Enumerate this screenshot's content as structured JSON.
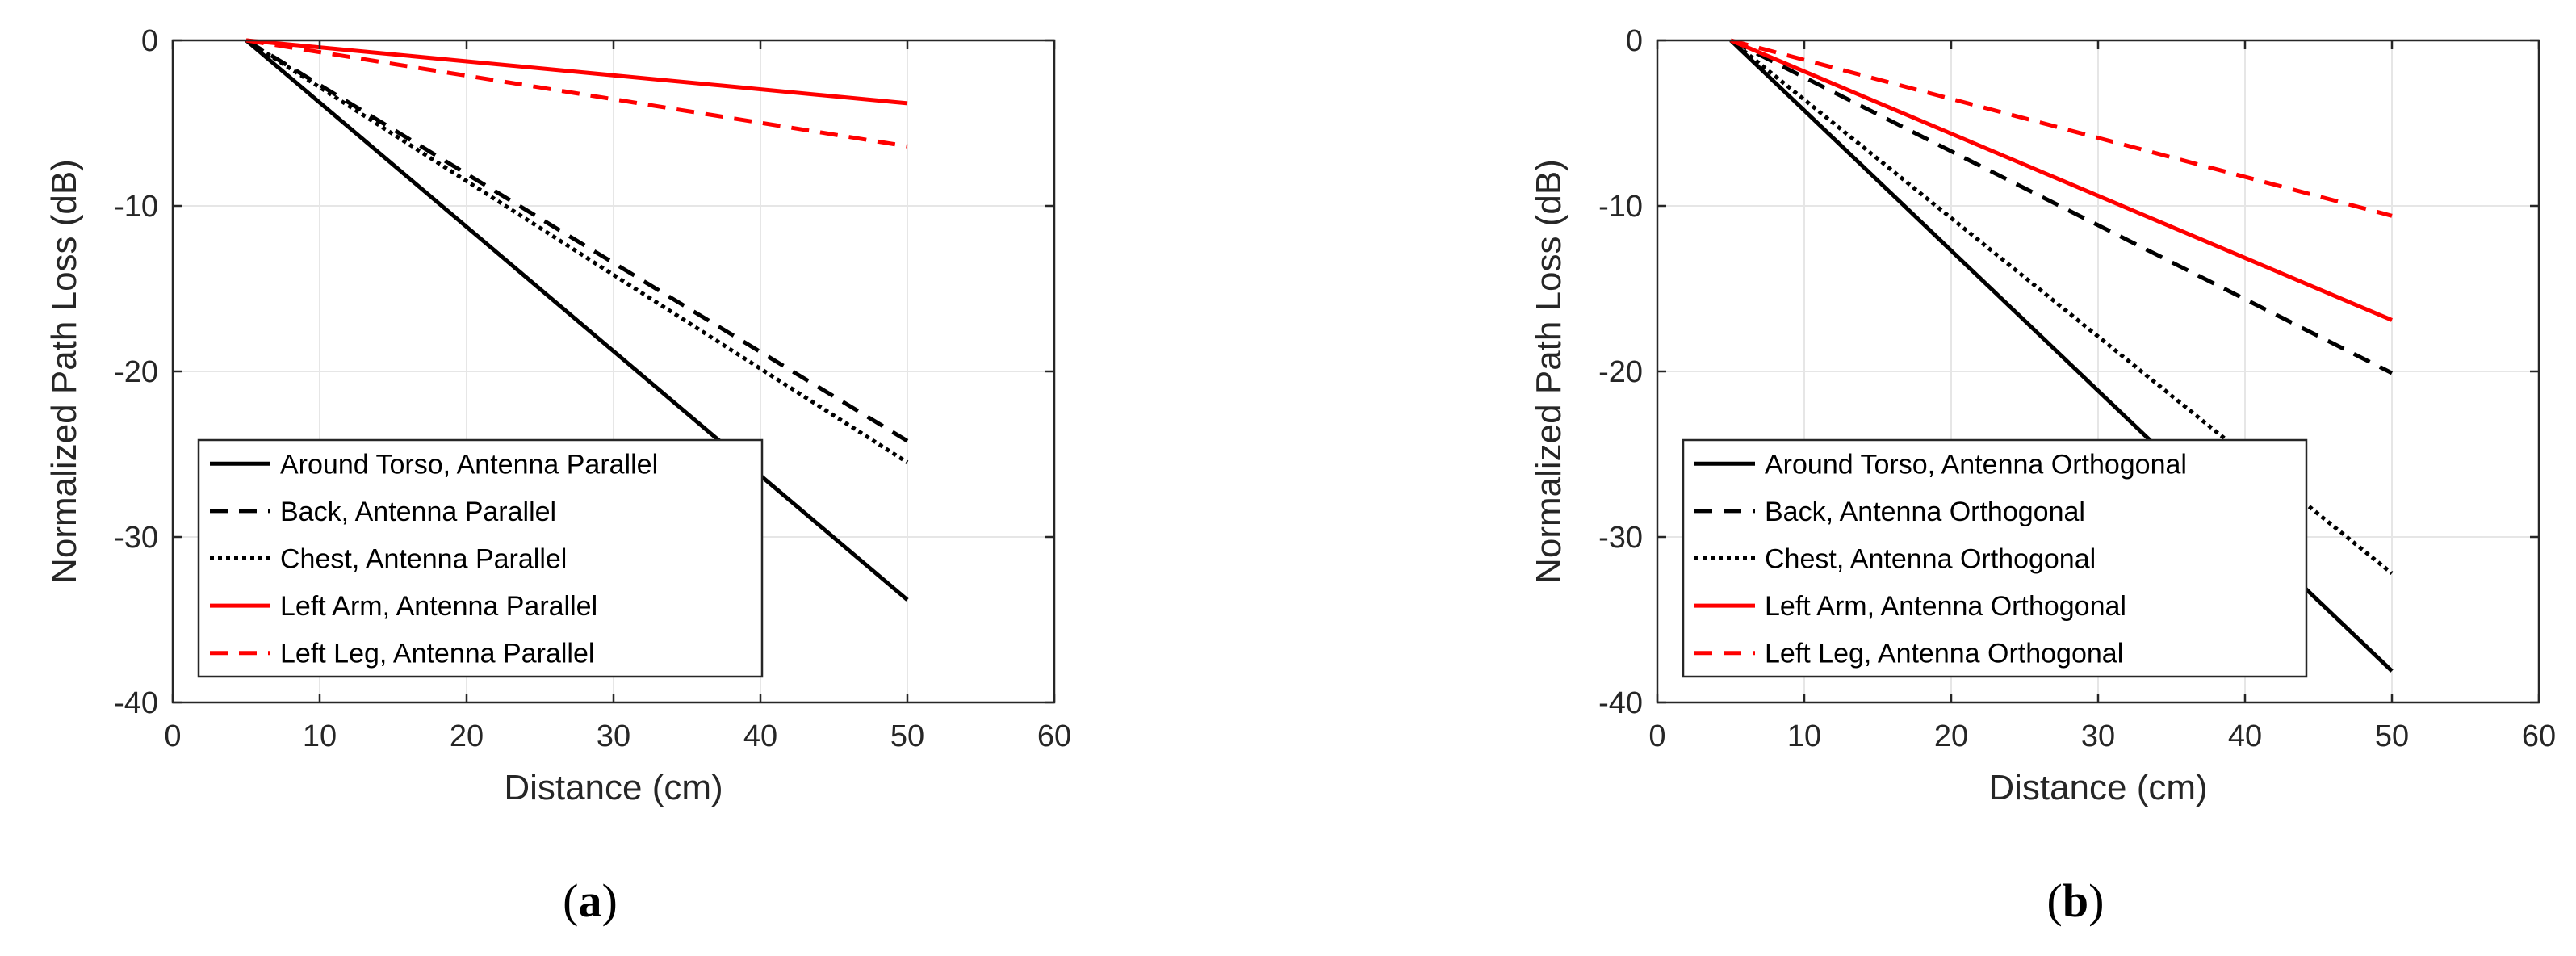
{
  "chart_data": [
    {
      "type": "line",
      "panel_label": "a",
      "xlabel": "Distance (cm)",
      "ylabel": "Normalized Path Loss (dB)",
      "xlim": [
        0,
        60
      ],
      "ylim": [
        -40,
        0
      ],
      "xticks": [
        0,
        10,
        20,
        30,
        40,
        50,
        60
      ],
      "yticks": [
        0,
        -10,
        -20,
        -30,
        -40
      ],
      "grid": true,
      "legend_position": "bottom-left",
      "series": [
        {
          "name": "Around Torso, Antenna Parallel",
          "color": "#000000",
          "style": "solid",
          "x": [
            5,
            50
          ],
          "y": [
            0,
            -33.8
          ]
        },
        {
          "name": "Back, Antenna Parallel",
          "color": "#000000",
          "style": "dashed",
          "x": [
            5,
            50
          ],
          "y": [
            0,
            -24.2
          ]
        },
        {
          "name": "Chest, Antenna Parallel",
          "color": "#000000",
          "style": "dotted",
          "x": [
            5,
            50
          ],
          "y": [
            0,
            -25.5
          ]
        },
        {
          "name": "Left Arm, Antenna Parallel",
          "color": "#ff0000",
          "style": "solid",
          "x": [
            5,
            50
          ],
          "y": [
            0,
            -3.8
          ]
        },
        {
          "name": "Left Leg, Antenna Parallel",
          "color": "#ff0000",
          "style": "dashed",
          "x": [
            5,
            50
          ],
          "y": [
            0,
            -6.4
          ]
        }
      ]
    },
    {
      "type": "line",
      "panel_label": "b",
      "xlabel": "Distance (cm)",
      "ylabel": "Normalized Path Loss (dB)",
      "xlim": [
        0,
        60
      ],
      "ylim": [
        -40,
        0
      ],
      "xticks": [
        0,
        10,
        20,
        30,
        40,
        50,
        60
      ],
      "yticks": [
        0,
        -10,
        -20,
        -30,
        -40
      ],
      "grid": true,
      "legend_position": "bottom-left",
      "series": [
        {
          "name": "Around Torso, Antenna Orthogonal",
          "color": "#000000",
          "style": "solid",
          "x": [
            5,
            50
          ],
          "y": [
            0,
            -38.1
          ]
        },
        {
          "name": "Back, Antenna Orthogonal",
          "color": "#000000",
          "style": "dashed",
          "x": [
            5,
            50
          ],
          "y": [
            0,
            -20.1
          ]
        },
        {
          "name": "Chest, Antenna Orthogonal",
          "color": "#000000",
          "style": "dotted",
          "x": [
            5,
            50
          ],
          "y": [
            0,
            -32.2
          ]
        },
        {
          "name": "Left Arm, Antenna Orthogonal",
          "color": "#ff0000",
          "style": "solid",
          "x": [
            5,
            50
          ],
          "y": [
            0,
            -16.9
          ]
        },
        {
          "name": "Left Leg, Antenna Orthogonal",
          "color": "#ff0000",
          "style": "dashed",
          "x": [
            5,
            50
          ],
          "y": [
            0,
            -10.6
          ]
        }
      ]
    }
  ]
}
